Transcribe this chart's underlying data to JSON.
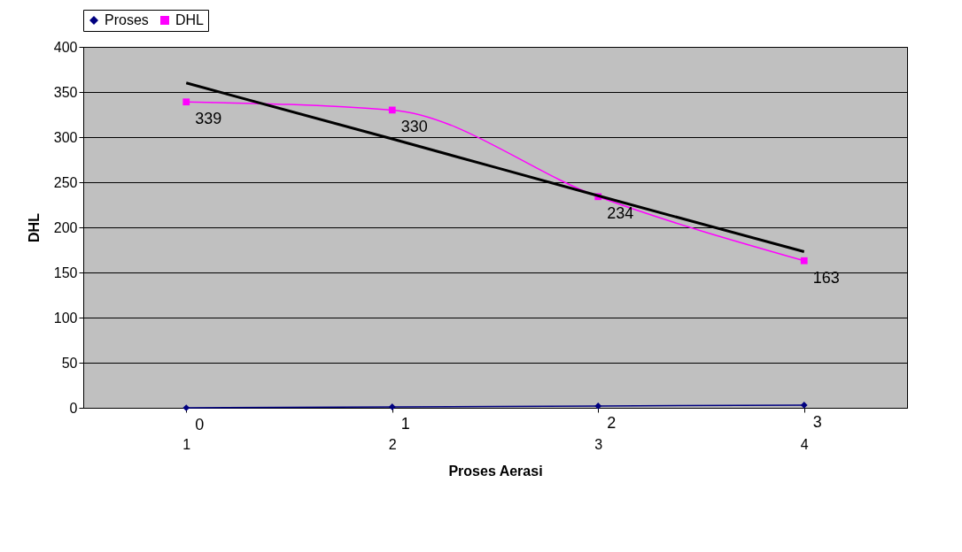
{
  "chart_data": {
    "type": "line",
    "xlabel": "Proses Aerasi",
    "ylabel": "DHL",
    "categories": [
      "1",
      "2",
      "3",
      "4"
    ],
    "series": [
      {
        "name": "Proses",
        "color": "#000080",
        "marker": "diamond",
        "values": [
          0,
          1,
          2,
          3
        ],
        "value_labels": [
          "0",
          "1",
          "2",
          "3"
        ]
      },
      {
        "name": "DHL",
        "color": "#ff00ff",
        "marker": "square",
        "values": [
          339,
          330,
          234,
          163
        ],
        "value_labels": [
          "339",
          "330",
          "234",
          "163"
        ]
      },
      {
        "type": "line",
        "color": "#000000",
        "marker": "none",
        "values": [
          360,
          298,
          235,
          173
        ]
      }
    ],
    "ylim": [
      0,
      400
    ],
    "yticks": [
      0,
      50,
      100,
      150,
      200,
      250,
      300,
      350,
      400
    ],
    "grid": "y",
    "legend": "top"
  }
}
